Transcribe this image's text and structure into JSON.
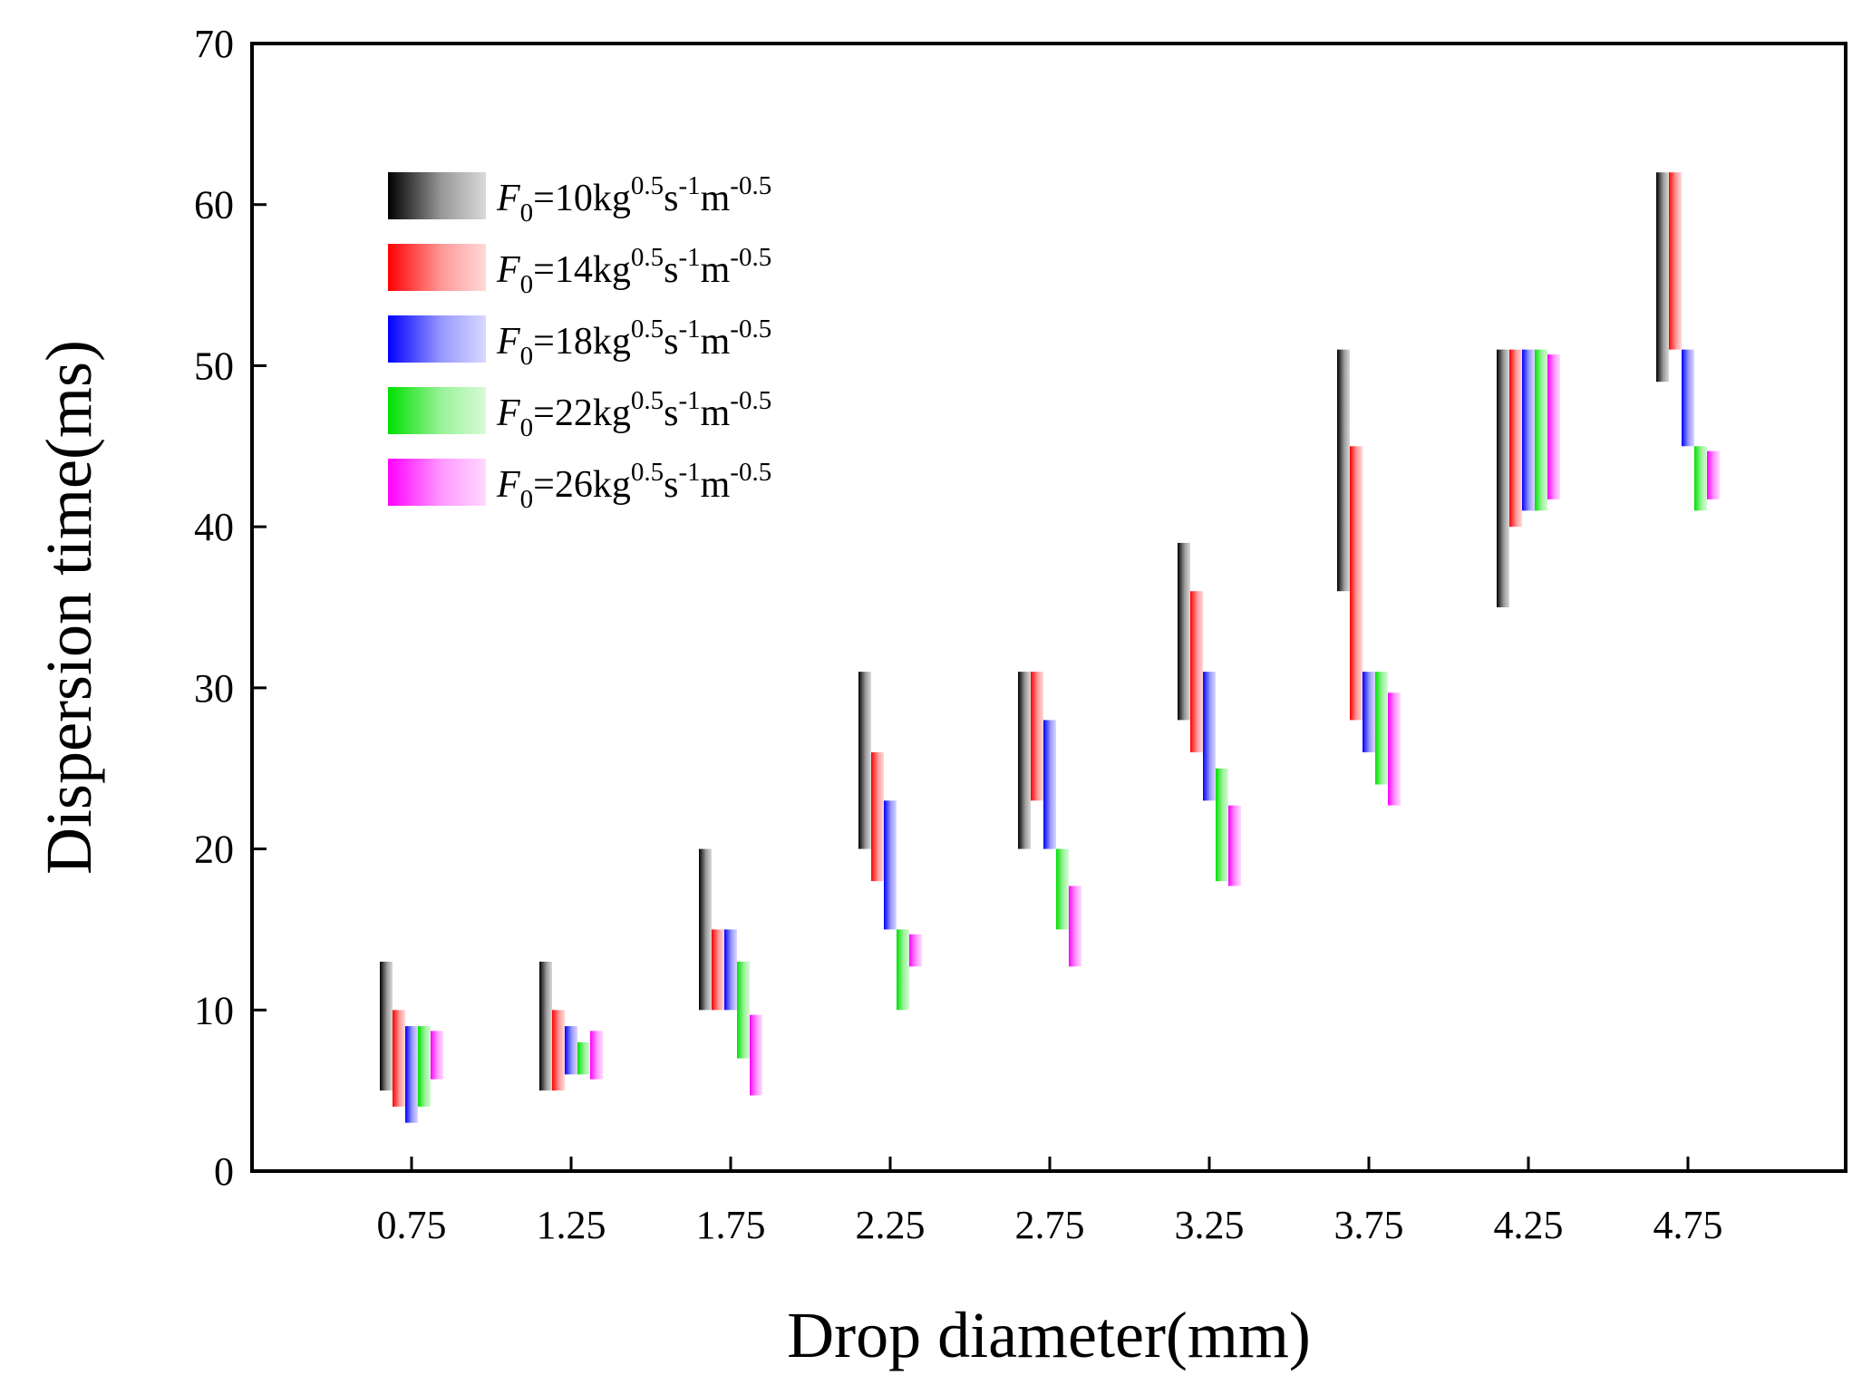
{
  "chart_data": {
    "type": "bar",
    "subtype": "floating-range",
    "title": "",
    "xlabel": "Drop diameter(mm)",
    "ylabel": "Dispersion time(ms)",
    "ylim": [
      0,
      70
    ],
    "yticks": [
      0,
      10,
      20,
      30,
      40,
      50,
      60,
      70
    ],
    "categories": [
      "0.75",
      "1.25",
      "1.75",
      "2.25",
      "2.75",
      "3.25",
      "3.75",
      "4.25",
      "4.75"
    ],
    "legend_position": "top-left",
    "series": [
      {
        "name": "F0=10kg^0.5 s^-1 m^-0.5",
        "legend": {
          "base": "F",
          "sub": "0",
          "mid1": "=10kg",
          "sup1": "0.5",
          "mid2": "s",
          "sup2": "-1",
          "mid3": "m",
          "sup3": "-0.5"
        },
        "color": "#000000",
        "ranges": [
          [
            5,
            13
          ],
          [
            5,
            13
          ],
          [
            10,
            20
          ],
          [
            20,
            31
          ],
          [
            20,
            31
          ],
          [
            28,
            39
          ],
          [
            36,
            51
          ],
          [
            35,
            51
          ],
          [
            49,
            62
          ]
        ]
      },
      {
        "name": "F0=14kg^0.5 s^-1 m^-0.5",
        "legend": {
          "base": "F",
          "sub": "0",
          "mid1": "=14kg",
          "sup1": "0.5",
          "mid2": "s",
          "sup2": "-1",
          "mid3": "m",
          "sup3": "-0.5"
        },
        "color": "#ff0000",
        "ranges": [
          [
            4,
            10
          ],
          [
            5,
            10
          ],
          [
            10,
            15
          ],
          [
            18,
            26
          ],
          [
            23,
            31
          ],
          [
            26,
            36
          ],
          [
            28,
            45
          ],
          [
            40,
            51
          ],
          [
            51,
            62
          ]
        ]
      },
      {
        "name": "F0=18kg^0.5 s^-1 m^-0.5",
        "legend": {
          "base": "F",
          "sub": "0",
          "mid1": "=18kg",
          "sup1": "0.5",
          "mid2": "s",
          "sup2": "-1",
          "mid3": "m",
          "sup3": "-0.5"
        },
        "color": "#0000ff",
        "ranges": [
          [
            3,
            9
          ],
          [
            6,
            9
          ],
          [
            10,
            15
          ],
          [
            15,
            23
          ],
          [
            20,
            28
          ],
          [
            23,
            31
          ],
          [
            26,
            31
          ],
          [
            41,
            51
          ],
          [
            45,
            51
          ]
        ]
      },
      {
        "name": "F0=22kg^0.5 s^-1 m^-0.5",
        "legend": {
          "base": "F",
          "sub": "0",
          "mid1": "=22kg",
          "sup1": "0.5",
          "mid2": "s",
          "sup2": "-1",
          "mid3": "m",
          "sup3": "-0.5"
        },
        "color": "#00e000",
        "ranges": [
          [
            4,
            9
          ],
          [
            6,
            8
          ],
          [
            7,
            13
          ],
          [
            10,
            15
          ],
          [
            15,
            20
          ],
          [
            18,
            25
          ],
          [
            24,
            31
          ],
          [
            41,
            51
          ],
          [
            41,
            45
          ]
        ]
      },
      {
        "name": "F0=26kg^0.5 s^-1 m^-0.5",
        "legend": {
          "base": "F",
          "sub": "0",
          "mid1": "=26kg",
          "sup1": "0.5",
          "mid2": "s",
          "sup2": "-1",
          "mid3": "m",
          "sup3": "-0.5"
        },
        "color": "#ff00ff",
        "ranges": [
          [
            5.7,
            8.7
          ],
          [
            5.7,
            8.7
          ],
          [
            4.7,
            9.7
          ],
          [
            12.7,
            14.7
          ],
          [
            12.7,
            17.7
          ],
          [
            17.7,
            22.7
          ],
          [
            22.7,
            29.7
          ],
          [
            41.7,
            50.7
          ],
          [
            41.7,
            44.7
          ]
        ]
      }
    ]
  }
}
